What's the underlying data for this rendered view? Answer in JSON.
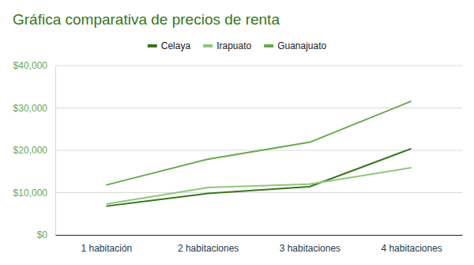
{
  "chart_data": {
    "type": "line",
    "title": "Gráfica comparativa de precios de renta",
    "categories": [
      "1 habitación",
      "2 habitaciones",
      "3 habitaciones",
      "4 habitaciones"
    ],
    "series": [
      {
        "name": "Celaya",
        "color": "#38761d",
        "values": [
          6800,
          9800,
          11400,
          20400
        ]
      },
      {
        "name": "Irapuato",
        "color": "#93c47d",
        "values": [
          7300,
          11200,
          12000,
          15900
        ]
      },
      {
        "name": "Guanajuato",
        "color": "#6aa84f",
        "values": [
          11800,
          17900,
          21900,
          31600
        ]
      }
    ],
    "ylim": [
      0,
      40000
    ],
    "yticks": [
      {
        "value": 0,
        "label": "$0"
      },
      {
        "value": 10000,
        "label": "$10,000"
      },
      {
        "value": 20000,
        "label": "$20,000"
      },
      {
        "value": 30000,
        "label": "$30,000"
      },
      {
        "value": 40000,
        "label": "$40,000"
      }
    ],
    "grid": true,
    "legend": "top"
  }
}
